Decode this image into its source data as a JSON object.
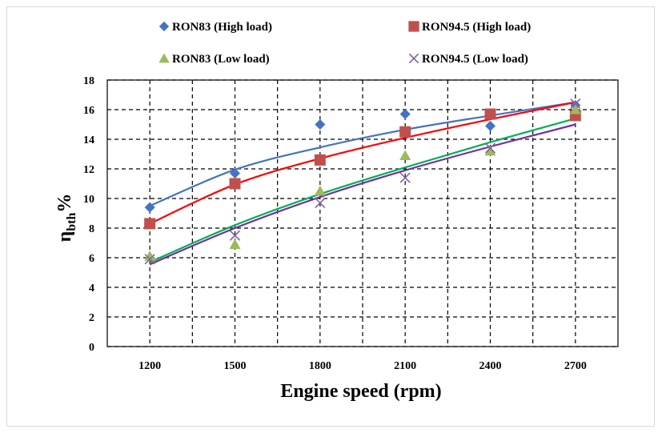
{
  "chart_data": {
    "type": "scatter",
    "title": "",
    "xlabel": "Engine speed (rpm)",
    "ylabel": {
      "main": "η",
      "subscript": "bth",
      "unit": "%"
    },
    "x_tick_labels": [
      "1200",
      "1500",
      "1800",
      "2100",
      "2400",
      "2700"
    ],
    "y_tick_labels": [
      "0",
      "2",
      "4",
      "6",
      "8",
      "10",
      "12",
      "14",
      "16",
      "18"
    ],
    "xlim": [
      1050,
      2850
    ],
    "ylim": [
      0,
      18
    ],
    "x_ticks": [
      1200,
      1350,
      1500,
      1650,
      1800,
      1950,
      2100,
      2250,
      2400,
      2550,
      2700
    ],
    "y_ticks": [
      0,
      2,
      4,
      6,
      8,
      10,
      12,
      14,
      16,
      18
    ],
    "grid": "dashed",
    "legend_position": "top",
    "series": [
      {
        "name": "RON83 (High load)",
        "marker": "diamond",
        "color": "#4472C4",
        "trend_color": "#4472C4",
        "x": [
          1200,
          1500,
          1800,
          2100,
          2400,
          2700
        ],
        "y": [
          9.4,
          11.7,
          15.0,
          15.7,
          14.9,
          16.3
        ],
        "trend": [
          9.5,
          11.95,
          13.45,
          14.65,
          15.6,
          16.5
        ]
      },
      {
        "name": "RON94.5 (High load)",
        "marker": "square",
        "color": "#C0504D",
        "trend_color": "#FF0000",
        "x": [
          1200,
          1500,
          1800,
          2100,
          2400,
          2700
        ],
        "y": [
          8.3,
          11.0,
          12.6,
          14.5,
          15.7,
          15.6
        ],
        "trend": [
          8.3,
          10.95,
          12.7,
          14.1,
          15.35,
          16.5
        ]
      },
      {
        "name": "RON83 (Low load)",
        "marker": "triangle",
        "color": "#9BBB59",
        "trend_color": "#00B050",
        "x": [
          1200,
          1500,
          1800,
          2100,
          2400,
          2700
        ],
        "y": [
          6.1,
          6.9,
          10.5,
          12.9,
          13.2,
          16.0
        ],
        "trend": [
          5.7,
          8.2,
          10.3,
          12.1,
          13.8,
          15.4
        ]
      },
      {
        "name": "RON94.5 (Low load)",
        "marker": "x",
        "color": "#8064A2",
        "trend_color": "#7030A0",
        "x": [
          1200,
          1500,
          1800,
          2100,
          2400,
          2700
        ],
        "y": [
          5.9,
          7.5,
          9.7,
          11.4,
          13.4,
          16.4
        ],
        "trend": [
          5.55,
          8.0,
          10.1,
          11.9,
          13.5,
          15.0
        ]
      }
    ]
  }
}
